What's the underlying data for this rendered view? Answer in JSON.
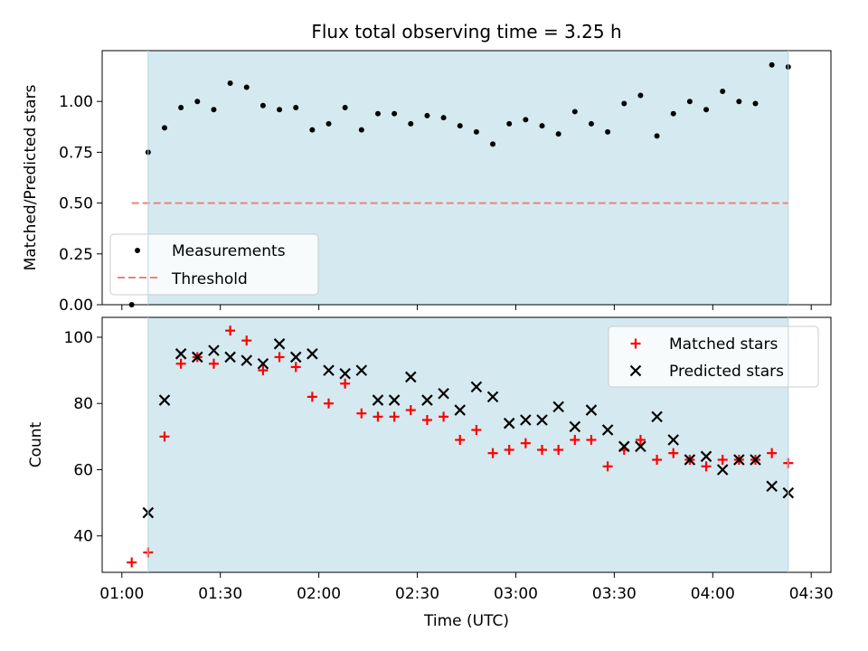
{
  "chart_data": [
    {
      "type": "scatter",
      "title": "Flux total observing time = 3.25 h",
      "xlabel": "",
      "ylabel": "Matched/Predicted stars",
      "ylim": [
        0,
        1.25
      ],
      "yticks": [
        "0.00",
        "0.25",
        "0.50",
        "0.75",
        "1.00"
      ],
      "highlight_region": {
        "from": "01:08",
        "to": "04:23",
        "color": "#d4eaf0"
      },
      "legend": {
        "position": "lower-left",
        "entries": [
          "Measurements",
          "Threshold"
        ]
      },
      "series": [
        {
          "name": "Measurements",
          "marker": "dot",
          "color": "#000000",
          "points": [
            [
              "01:03",
              0.0
            ],
            [
              "01:08",
              0.75
            ],
            [
              "01:13",
              0.87
            ],
            [
              "01:18",
              0.97
            ],
            [
              "01:23",
              1.0
            ],
            [
              "01:28",
              0.96
            ],
            [
              "01:33",
              1.09
            ],
            [
              "01:38",
              1.07
            ],
            [
              "01:43",
              0.98
            ],
            [
              "01:48",
              0.96
            ],
            [
              "01:53",
              0.97
            ],
            [
              "01:58",
              0.86
            ],
            [
              "02:03",
              0.89
            ],
            [
              "02:08",
              0.97
            ],
            [
              "02:13",
              0.86
            ],
            [
              "02:18",
              0.94
            ],
            [
              "02:23",
              0.94
            ],
            [
              "02:28",
              0.89
            ],
            [
              "02:33",
              0.93
            ],
            [
              "02:38",
              0.92
            ],
            [
              "02:43",
              0.88
            ],
            [
              "02:48",
              0.85
            ],
            [
              "02:53",
              0.79
            ],
            [
              "02:58",
              0.89
            ],
            [
              "03:03",
              0.91
            ],
            [
              "03:08",
              0.88
            ],
            [
              "03:13",
              0.84
            ],
            [
              "03:18",
              0.95
            ],
            [
              "03:23",
              0.89
            ],
            [
              "03:28",
              0.85
            ],
            [
              "03:33",
              0.99
            ],
            [
              "03:38",
              1.03
            ],
            [
              "03:43",
              0.83
            ],
            [
              "03:48",
              0.94
            ],
            [
              "03:53",
              1.0
            ],
            [
              "03:58",
              0.96
            ],
            [
              "04:03",
              1.05
            ],
            [
              "04:08",
              1.0
            ],
            [
              "04:13",
              0.99
            ],
            [
              "04:18",
              1.18
            ],
            [
              "04:23",
              1.17
            ]
          ]
        },
        {
          "name": "Threshold",
          "marker": "dashed-line",
          "color": "#f08080",
          "points": [
            [
              "01:03",
              0.5
            ],
            [
              "04:23",
              0.5
            ]
          ]
        }
      ]
    },
    {
      "type": "scatter",
      "title": "",
      "xlabel": "Time (UTC)",
      "ylabel": "Count",
      "ylim": [
        29,
        106
      ],
      "yticks": [
        "40",
        "60",
        "80",
        "100"
      ],
      "xticks": [
        "01:00",
        "01:30",
        "02:00",
        "02:30",
        "03:00",
        "03:30",
        "04:00",
        "04:30"
      ],
      "highlight_region": {
        "from": "01:08",
        "to": "04:23",
        "color": "#d4eaf0"
      },
      "legend": {
        "position": "top-right",
        "entries": [
          "Matched stars",
          "Predicted stars"
        ]
      },
      "series": [
        {
          "name": "Matched stars",
          "marker": "plus",
          "color": "#ff0000",
          "points": [
            [
              "01:03",
              32
            ],
            [
              "01:08",
              35
            ],
            [
              "01:13",
              70
            ],
            [
              "01:18",
              92
            ],
            [
              "01:23",
              94
            ],
            [
              "01:28",
              92
            ],
            [
              "01:33",
              102
            ],
            [
              "01:38",
              99
            ],
            [
              "01:43",
              90
            ],
            [
              "01:48",
              94
            ],
            [
              "01:53",
              91
            ],
            [
              "01:58",
              82
            ],
            [
              "02:03",
              80
            ],
            [
              "02:08",
              86
            ],
            [
              "02:13",
              77
            ],
            [
              "02:18",
              76
            ],
            [
              "02:23",
              76
            ],
            [
              "02:28",
              78
            ],
            [
              "02:33",
              75
            ],
            [
              "02:38",
              76
            ],
            [
              "02:43",
              69
            ],
            [
              "02:48",
              72
            ],
            [
              "02:53",
              65
            ],
            [
              "02:58",
              66
            ],
            [
              "03:03",
              68
            ],
            [
              "03:08",
              66
            ],
            [
              "03:13",
              66
            ],
            [
              "03:18",
              69
            ],
            [
              "03:23",
              69
            ],
            [
              "03:28",
              61
            ],
            [
              "03:33",
              66
            ],
            [
              "03:38",
              69
            ],
            [
              "03:43",
              63
            ],
            [
              "03:48",
              65
            ],
            [
              "03:53",
              63
            ],
            [
              "03:58",
              61
            ],
            [
              "04:03",
              63
            ],
            [
              "04:08",
              63
            ],
            [
              "04:13",
              63
            ],
            [
              "04:18",
              65
            ],
            [
              "04:23",
              62
            ]
          ]
        },
        {
          "name": "Predicted stars",
          "marker": "x",
          "color": "#000000",
          "points": [
            [
              "01:08",
              47
            ],
            [
              "01:13",
              81
            ],
            [
              "01:18",
              95
            ],
            [
              "01:23",
              94
            ],
            [
              "01:28",
              96
            ],
            [
              "01:33",
              94
            ],
            [
              "01:38",
              93
            ],
            [
              "01:43",
              92
            ],
            [
              "01:48",
              98
            ],
            [
              "01:53",
              94
            ],
            [
              "01:58",
              95
            ],
            [
              "02:03",
              90
            ],
            [
              "02:08",
              89
            ],
            [
              "02:13",
              90
            ],
            [
              "02:18",
              81
            ],
            [
              "02:23",
              81
            ],
            [
              "02:28",
              88
            ],
            [
              "02:33",
              81
            ],
            [
              "02:38",
              83
            ],
            [
              "02:43",
              78
            ],
            [
              "02:48",
              85
            ],
            [
              "02:53",
              82
            ],
            [
              "02:58",
              74
            ],
            [
              "03:03",
              75
            ],
            [
              "03:08",
              75
            ],
            [
              "03:13",
              79
            ],
            [
              "03:18",
              73
            ],
            [
              "03:23",
              78
            ],
            [
              "03:28",
              72
            ],
            [
              "03:33",
              67
            ],
            [
              "03:38",
              67
            ],
            [
              "03:43",
              76
            ],
            [
              "03:48",
              69
            ],
            [
              "03:53",
              63
            ],
            [
              "03:58",
              64
            ],
            [
              "04:03",
              60
            ],
            [
              "04:08",
              63
            ],
            [
              "04:13",
              63
            ],
            [
              "04:18",
              55
            ],
            [
              "04:23",
              53
            ]
          ]
        }
      ]
    }
  ]
}
